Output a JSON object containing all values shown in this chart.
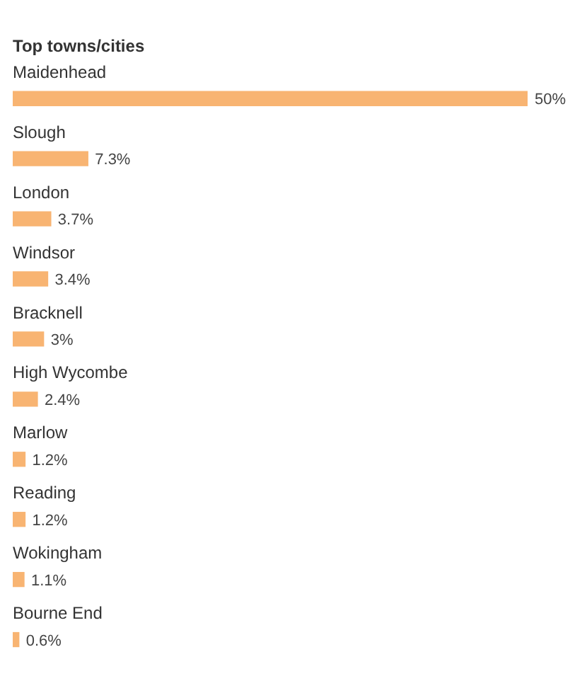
{
  "chart_data": {
    "type": "bar",
    "orientation": "horizontal",
    "title": "Top towns/cities",
    "categories": [
      "Maidenhead",
      "Slough",
      "London",
      "Windsor",
      "Bracknell",
      "High Wycombe",
      "Marlow",
      "Reading",
      "Wokingham",
      "Bourne End"
    ],
    "values": [
      50,
      7.3,
      3.7,
      3.4,
      3,
      2.4,
      1.2,
      1.2,
      1.1,
      0.6
    ],
    "value_labels": [
      "50%",
      "7.3%",
      "3.7%",
      "3.4%",
      "3%",
      "2.4%",
      "1.2%",
      "1.2%",
      "1.1%",
      "0.6%"
    ],
    "color": "#f8b472",
    "legend": false
  }
}
